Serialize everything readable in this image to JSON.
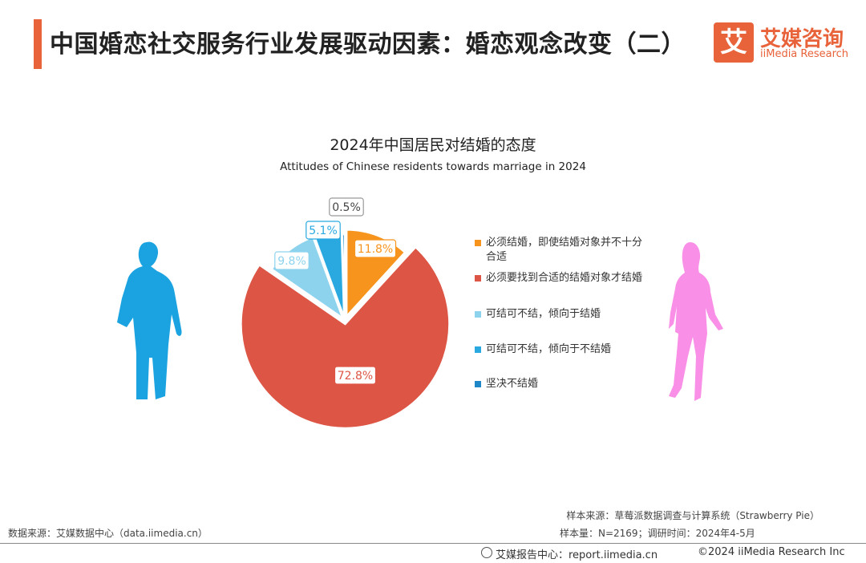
{
  "header": {
    "title": "中国婚恋社交服务行业发展驱动因素：婚恋观念改变（二）",
    "logo_mark": "艾",
    "logo_cn": "艾媒咨询",
    "logo_en": "iiMedia Research"
  },
  "chart_data": {
    "type": "pie",
    "title": "2024年中国居民对结婚的态度",
    "subtitle": "Attitudes of Chinese residents towards marriage in 2024",
    "slices": [
      {
        "label": "必须结婚，即使结婚对象并不十分合适",
        "value": 11.8,
        "display": "11.8%",
        "color": "#f7941d"
      },
      {
        "label": "必须要找到合适的结婚对象才结婚",
        "value": 72.8,
        "display": "72.8%",
        "color": "#dd5544"
      },
      {
        "label": "可结可不结，倾向于结婚",
        "value": 9.8,
        "display": "9.8%",
        "color": "#8dd3ee"
      },
      {
        "label": "可结可不结，倾向于不结婚",
        "value": 5.1,
        "display": "5.1%",
        "color": "#29a9e0"
      },
      {
        "label": "坚决不结婚",
        "value": 0.5,
        "display": "0.5%",
        "color": "#1f86c8"
      }
    ],
    "legend_position": "right",
    "start_angle": "12 o'clock",
    "direction": "clockwise"
  },
  "legend": {
    "items": [
      {
        "text": "必须结婚，即使结婚对象并不十分合适",
        "color": "#f7941d"
      },
      {
        "text": "必须要找到合适的结婚对象才结婚",
        "color": "#dd5544"
      },
      {
        "text": "可结可不结，倾向于结婚",
        "color": "#8dd3ee"
      },
      {
        "text": "可结可不结，倾向于不结婚",
        "color": "#29a9e0"
      },
      {
        "text": "坚决不结婚",
        "color": "#1f86c8"
      }
    ]
  },
  "figures": {
    "male_color": "#1aa3e0",
    "female_color": "#f98fe6"
  },
  "footer": {
    "data_source": "数据来源：艾媒数据中心（data.iimedia.cn）",
    "sample_source": "样本来源：草莓派数据调查与计算系统（Strawberry Pie）",
    "sample_info": "样本量：N=2169；调研时间：2024年4-5月",
    "brand": "艾媒报告中心：report.iimedia.cn",
    "copyright": "©2024  iiMedia Research Inc"
  }
}
